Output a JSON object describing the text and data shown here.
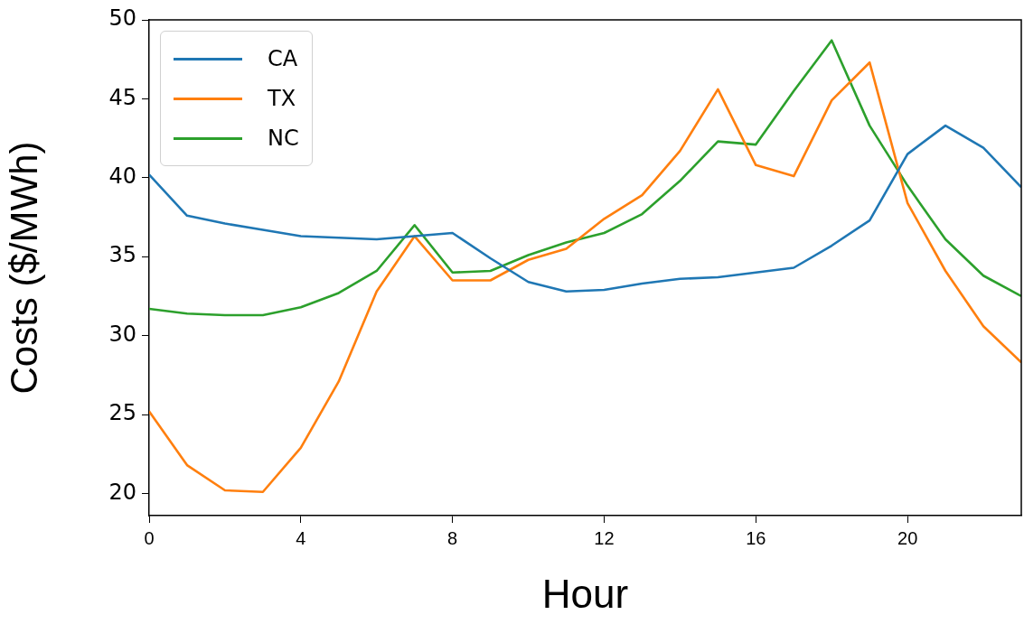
{
  "chart_data": {
    "type": "line",
    "xlabel": "Hour",
    "ylabel": "Costs ($/MWh)",
    "x": [
      0,
      1,
      2,
      3,
      4,
      5,
      6,
      7,
      8,
      9,
      10,
      11,
      12,
      13,
      14,
      15,
      16,
      17,
      18,
      19,
      20,
      21,
      22,
      23
    ],
    "series": [
      {
        "name": "CA",
        "color": "#1f77b4",
        "values": [
          40.2,
          37.6,
          37.1,
          36.7,
          36.3,
          36.2,
          36.1,
          36.3,
          36.5,
          34.9,
          33.4,
          32.8,
          32.9,
          33.3,
          33.6,
          33.7,
          34.0,
          34.3,
          35.7,
          37.3,
          41.5,
          43.3,
          41.9,
          39.4
        ]
      },
      {
        "name": "TX",
        "color": "#ff7f0e",
        "values": [
          25.2,
          21.8,
          20.2,
          20.1,
          22.9,
          27.1,
          32.8,
          36.3,
          33.5,
          33.5,
          34.8,
          35.5,
          37.4,
          38.9,
          41.7,
          45.6,
          40.8,
          40.1,
          44.9,
          47.3,
          38.4,
          34.1,
          30.6,
          28.3
        ]
      },
      {
        "name": "NC",
        "color": "#2ca02c",
        "values": [
          31.7,
          31.4,
          31.3,
          31.3,
          31.8,
          32.7,
          34.1,
          37.0,
          34.0,
          34.1,
          35.1,
          35.9,
          36.5,
          37.7,
          39.8,
          42.3,
          42.1,
          45.5,
          48.7,
          43.3,
          39.5,
          36.1,
          33.8,
          32.5
        ]
      }
    ],
    "xlim": [
      0,
      23
    ],
    "xticks": [
      0,
      4,
      8,
      12,
      16,
      20
    ],
    "ylim": [
      18.6,
      50
    ],
    "yticks": [
      20,
      25,
      30,
      35,
      40,
      45,
      50
    ],
    "legend": "top left",
    "grid": false,
    "marker": "none",
    "line_style": "solid"
  }
}
